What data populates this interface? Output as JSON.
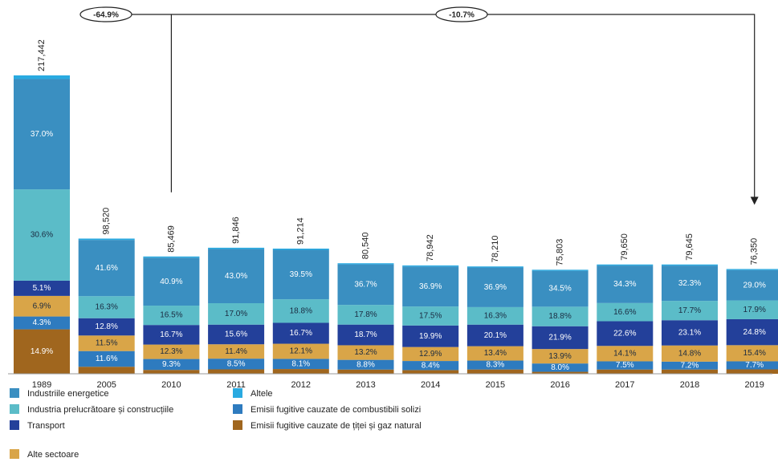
{
  "chart_data": {
    "type": "bar",
    "stacked": true,
    "categories": [
      "1989",
      "2005",
      "2010",
      "2011",
      "2012",
      "2013",
      "2014",
      "2015",
      "2016",
      "2017",
      "2018",
      "2019"
    ],
    "totals": {
      "values": [
        217442,
        98520,
        85469,
        91846,
        91214,
        80540,
        78942,
        78210,
        75803,
        79650,
        79645,
        76350
      ],
      "value_labels": [
        "217,442",
        "98,520",
        "85,469",
        "91,846",
        "91,214",
        "80,540",
        "78,942",
        "78,210",
        "75,803",
        "79,650",
        "79,645",
        "76,350"
      ]
    },
    "annotations": [
      "-64.9%",
      "-10.7%"
    ],
    "series": [
      {
        "name": "Industriile energetice",
        "color": "#3a8fc1",
        "values": [
          37.0,
          41.6,
          40.9,
          43.0,
          39.5,
          36.7,
          36.9,
          36.9,
          34.5,
          34.3,
          32.3,
          29.0
        ],
        "value_labels": [
          "37.0%",
          "41.6%",
          "40.9%",
          "43.0%",
          "39.5%",
          "36.7%",
          "36.9%",
          "36.9%",
          "34.5%",
          "34.3%",
          "32.3%",
          "29.0%"
        ]
      },
      {
        "name": "Industria prelucrătoare și construcțiile",
        "color": "#5bbcc8",
        "values": [
          30.6,
          16.3,
          16.5,
          17.0,
          18.8,
          17.8,
          17.5,
          16.3,
          18.8,
          16.6,
          17.7,
          17.9
        ],
        "value_labels": [
          "30.6%",
          "16.3%",
          "16.5%",
          "17.0%",
          "18.8%",
          "17.8%",
          "17.5%",
          "16.3%",
          "18.8%",
          "16.6%",
          "17.7%",
          "17.9%"
        ]
      },
      {
        "name": "Transport",
        "color": "#23409a",
        "values": [
          5.1,
          12.8,
          16.7,
          15.6,
          16.7,
          18.7,
          19.9,
          20.1,
          21.9,
          22.6,
          23.1,
          24.8
        ],
        "value_labels": [
          "5.1%",
          "12.8%",
          "16.7%",
          "15.6%",
          "16.7%",
          "18.7%",
          "19.9%",
          "20.1%",
          "21.9%",
          "22.6%",
          "23.1%",
          "24.8%"
        ]
      },
      {
        "name": "Alte sectoare",
        "color": "#d9a548",
        "values": [
          6.9,
          11.5,
          12.3,
          11.4,
          12.1,
          13.2,
          12.9,
          13.4,
          13.9,
          14.1,
          14.8,
          15.4
        ],
        "value_labels": [
          "6.9%",
          "11.5%",
          "12.3%",
          "11.4%",
          "12.1%",
          "13.2%",
          "12.9%",
          "13.4%",
          "13.9%",
          "14.1%",
          "14.8%",
          "15.4%"
        ]
      },
      {
        "name": "Altele",
        "color": "#29aae1",
        "values": [
          1.2,
          1,
          1,
          1,
          1,
          1,
          1,
          1,
          1,
          1,
          1,
          1
        ],
        "value_labels": [
          null,
          null,
          null,
          null,
          null,
          null,
          null,
          null,
          null,
          null,
          null,
          null
        ]
      },
      {
        "name": "Emisii fugitive cauzate de combustibili solizi",
        "color": "#2e7bbf",
        "values": [
          4.3,
          11.6,
          9.3,
          8.5,
          8.1,
          8.8,
          8.4,
          8.3,
          8.0,
          7.5,
          7.2,
          7.7
        ],
        "value_labels": [
          "4.3%",
          "11.6%",
          "9.3%",
          "8.5%",
          "8.1%",
          "8.8%",
          "8.4%",
          "8.3%",
          "8.0%",
          "7.5%",
          "7.2%",
          "7.7%"
        ]
      },
      {
        "name": "Emisii fugitive cauzate de țiței și gaz natural",
        "color": "#a0661e",
        "values": [
          14.9,
          5.2,
          3.3,
          3.5,
          3.8,
          3.8,
          3.4,
          4.0,
          1.9,
          3.9,
          3.9,
          4.2
        ],
        "value_labels": [
          "14.9%",
          null,
          null,
          null,
          null,
          null,
          null,
          null,
          null,
          null,
          null,
          null
        ]
      }
    ]
  }
}
